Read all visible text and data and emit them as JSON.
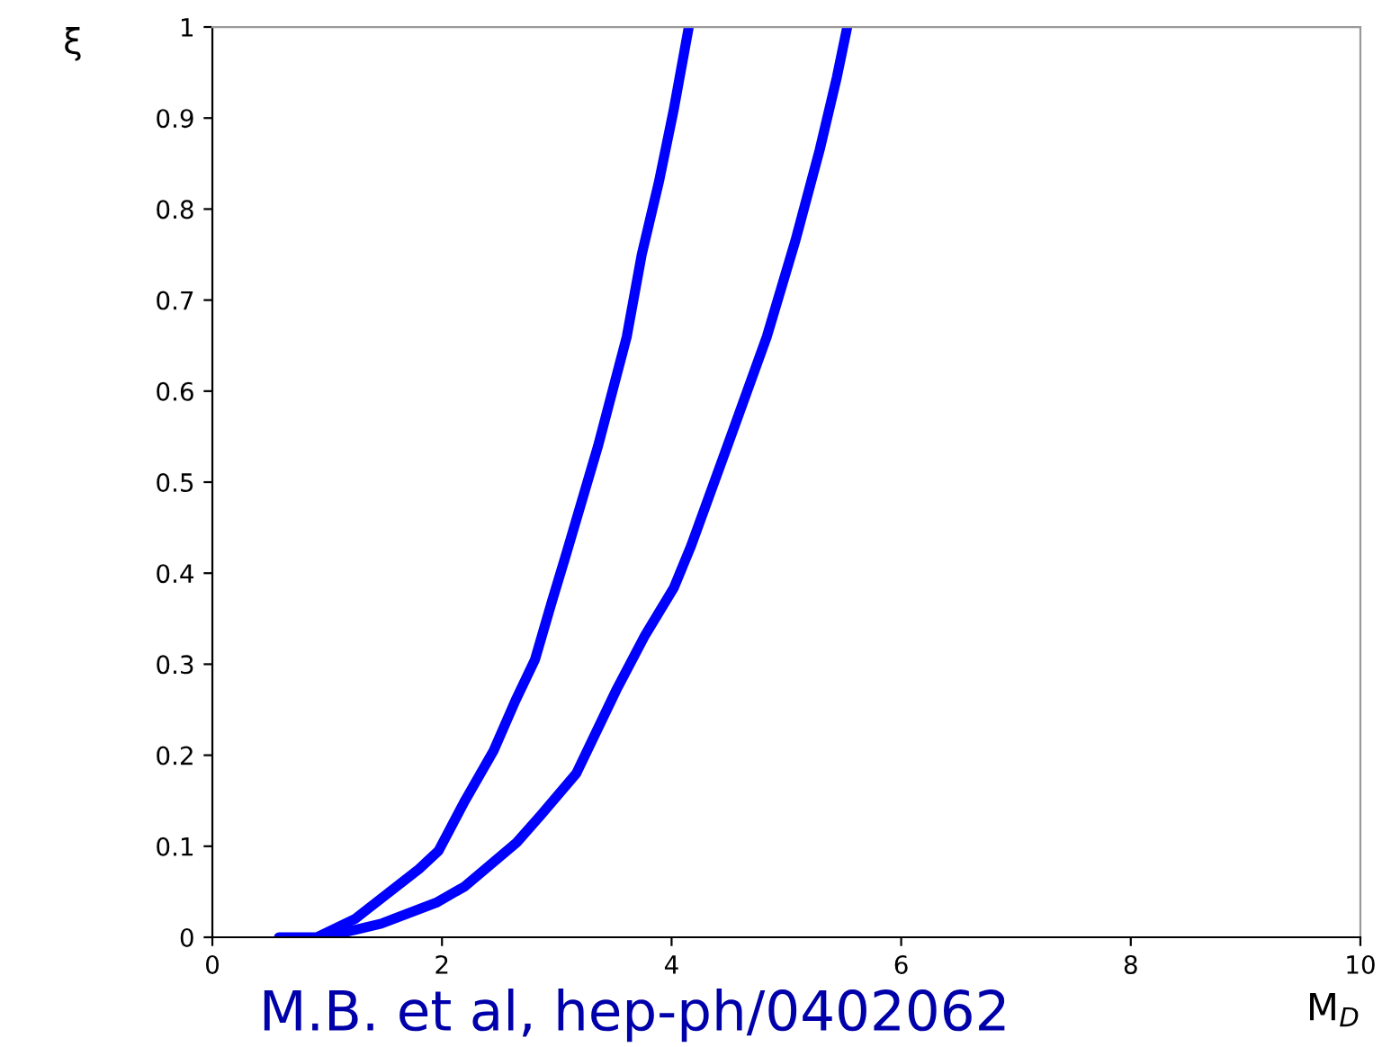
{
  "chart_data": {
    "type": "line",
    "xlabel": "M$_{D}$",
    "ylabel": "ξ",
    "annotations": [
      "M.B. et al, hep-ph/0402062"
    ],
    "xlim": [
      0,
      10
    ],
    "ylim": [
      0,
      1
    ],
    "xticks": [
      0,
      2,
      4,
      6,
      8,
      10
    ],
    "yticks": [
      0,
      0.1,
      0.2,
      0.3,
      0.4,
      0.5,
      0.6,
      0.7,
      0.8,
      0.9,
      1
    ],
    "grid": false,
    "legend": false,
    "marker": "none",
    "line_style": "solid",
    "series": [
      {
        "color": "#0000ff",
        "x": [
          0.58,
          0.83,
          0.91,
          1.24,
          1.8,
          1.97,
          2.2,
          2.45,
          2.64,
          2.81,
          2.96,
          3.08,
          3.36,
          3.61,
          3.74,
          3.89,
          4.02,
          4.15
        ],
        "values": [
          0,
          0,
          0,
          0.02,
          0.075,
          0.095,
          0.15,
          0.205,
          0.26,
          0.305,
          0.37,
          0.42,
          0.54,
          0.66,
          0.75,
          0.83,
          0.91,
          1.0
        ]
      },
      {
        "color": "#0000ff",
        "x": [
          0.94,
          1.24,
          1.47,
          1.95,
          2.2,
          2.65,
          2.86,
          3.17,
          3.52,
          3.77,
          4.02,
          4.17,
          4.53,
          4.83,
          5.08,
          5.29,
          5.44,
          5.53
        ],
        "values": [
          0,
          0.008,
          0.015,
          0.038,
          0.056,
          0.104,
          0.134,
          0.18,
          0.272,
          0.332,
          0.384,
          0.43,
          0.555,
          0.66,
          0.766,
          0.865,
          0.945,
          1.0
        ]
      }
    ]
  }
}
